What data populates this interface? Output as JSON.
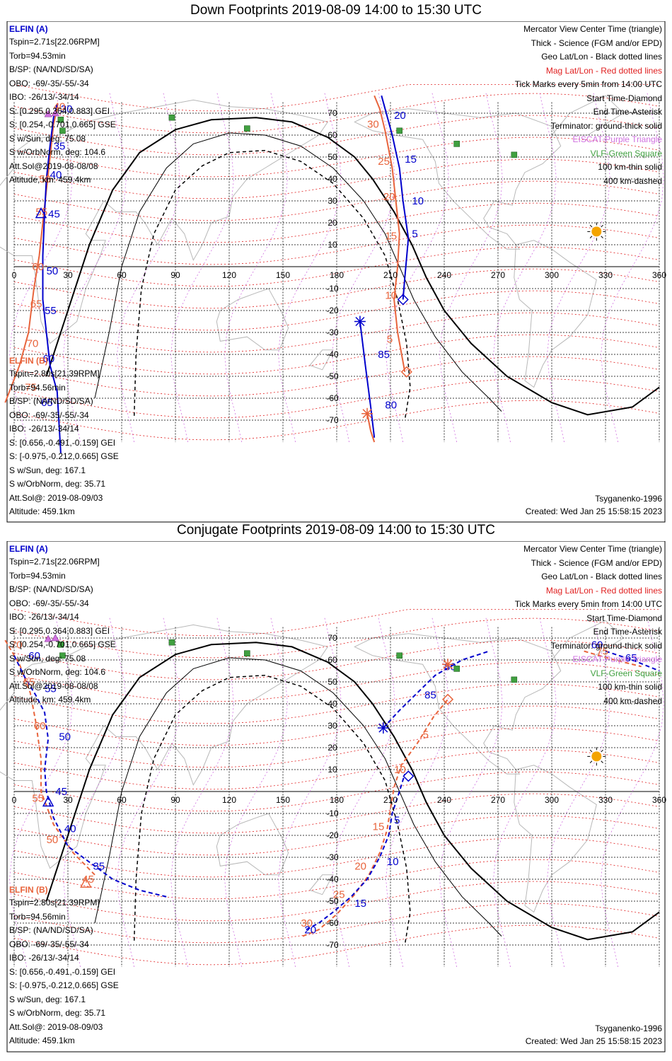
{
  "colors": {
    "elfin_a": "#0000cc",
    "elfin_b": "#e8643c",
    "geo_grid": "#000000",
    "mag_grid": "#e02020",
    "eiscat": "#d070e0",
    "vlf": "#40a040",
    "sun": "#f4a400"
  },
  "panels": [
    {
      "title": "Down Footprints 2019-08-09 14:00 to 15:30 UTC",
      "elfin_a": {
        "name": "ELFIN (A)",
        "lines": [
          "Tspin=2.71s[22.06RPM]",
          "Torb=94.53min",
          "B/SP: (NA/ND/SD/SA)",
          "OBO: -69/-35/-55/-34",
          "IBO: -26/13/-34/14",
          "S: [0.295,0.364,0.883] GEI",
          "S: [0.254,-0.701,0.665] GSE",
          "S w/Sun, deg: 75.08",
          "S w/OrbNorm, deg: 104.6",
          "Att.Sol@2019-08-08/08",
          "Altitude, km: 459.4km"
        ]
      },
      "elfin_b": {
        "name": "ELFIN (B)",
        "lines": [
          "Tspin=2.80s[21.39RPM]",
          "Torb=94.56min",
          "B/SP: (NA/ND/SD/SA)",
          "OBO: -69/-35/-55/-34",
          "IBO: -26/13/-34/14",
          "S: [0.656,-0.491,-0.159] GEI",
          "S: [-0.975,-0.212,0.665] GSE",
          "S w/Sun, deg: 167.1",
          "S w/OrbNorm, deg: 35.71",
          "Att.Sol@: 2019-08-09/03",
          "Altitude: 459.1km"
        ]
      },
      "legend": [
        {
          "text": "Mercator View Center Time (triangle)",
          "color": "black"
        },
        {
          "text": "Thick - Science (FGM and/or EPD)",
          "color": "black"
        },
        {
          "text": "Geo Lat/Lon - Black dotted lines",
          "color": "black"
        },
        {
          "text": "Mag Lat/Lon - Red dotted lines",
          "color": "red"
        },
        {
          "text": "Tick Marks every 5min from 14:00 UTC",
          "color": "black"
        },
        {
          "text": "Start Time-Diamond",
          "color": "black"
        },
        {
          "text": "End Time-Asterisk",
          "color": "black"
        },
        {
          "text": "Terminator: ground-thick solid",
          "color": "black"
        },
        {
          "text": "EISCAT-Purple Triangle",
          "color": "violet"
        },
        {
          "text": "VLF-Green Square",
          "color": "green"
        },
        {
          "text": "100 km-thin solid",
          "color": "black"
        },
        {
          "text": "400 km-dashed",
          "color": "black"
        }
      ],
      "model": "Tsyganenko-1996",
      "created": "Created: Wed Jan 25 15:58:15 2023"
    },
    {
      "title": "Conjugate Footprints 2019-08-09 14:00 to 15:30 UTC",
      "elfin_a": {
        "name": "ELFIN (A)",
        "lines": [
          "Tspin=2.71s[22.06RPM]",
          "Torb=94.53min",
          "B/SP: (NA/ND/SD/SA)",
          "OBO: -69/-35/-55/-34",
          "IBO: -26/13/-34/14",
          "S: [0.295,0.364,0.883] GEI",
          "S: [0.254,-0.701,0.665] GSE",
          "S w/Sun, deg: 75.08",
          "S w/OrbNorm, deg: 104.6",
          "Att.Sol@2019-08-08/08",
          "Altitude, km: 459.4km"
        ]
      },
      "elfin_b": {
        "name": "ELFIN (B)",
        "lines": [
          "Tspin=2.80s[21.39RPM]",
          "Torb=94.56min",
          "B/SP: (NA/ND/SD/SA)",
          "OBO: -69/-35/-55/-34",
          "IBO: -26/13/-34/14",
          "S: [0.656,-0.491,-0.159] GEI",
          "S: [-0.975,-0.212,0.665] GSE",
          "S w/Sun, deg: 167.1",
          "S w/OrbNorm, deg: 35.71",
          "Att.Sol@: 2019-08-09/03",
          "Altitude: 459.1km"
        ]
      },
      "legend": [
        {
          "text": "Mercator View Center Time (triangle)",
          "color": "black"
        },
        {
          "text": "Thick - Science (FGM and/or EPD)",
          "color": "black"
        },
        {
          "text": "Geo Lat/Lon - Black dotted lines",
          "color": "black"
        },
        {
          "text": "Mag Lat/Lon - Red dotted lines",
          "color": "red"
        },
        {
          "text": "Tick Marks every 5min from 14:00 UTC",
          "color": "black"
        },
        {
          "text": "Start Time-Diamond",
          "color": "black"
        },
        {
          "text": "End Time-Asterisk",
          "color": "black"
        },
        {
          "text": "Terminator: ground-thick solid",
          "color": "black"
        },
        {
          "text": "EISCAT-Purple Triangle",
          "color": "violet"
        },
        {
          "text": "VLF-Green Square",
          "color": "green"
        },
        {
          "text": "100 km-thin solid",
          "color": "black"
        },
        {
          "text": "400 km-dashed",
          "color": "black"
        }
      ],
      "model": "Tsyganenko-1996",
      "created": "Created: Wed Jan 25 15:58:15 2023"
    }
  ],
  "lon_ticks": [
    "0",
    "30",
    "60",
    "90",
    "120",
    "150",
    "180",
    "210",
    "240",
    "270",
    "300",
    "330",
    "360"
  ],
  "lat_ticks": [
    {
      "label": "70",
      "lat": 70
    },
    {
      "label": "60",
      "lat": 60
    },
    {
      "label": "50",
      "lat": 50
    },
    {
      "label": "40",
      "lat": 40
    },
    {
      "label": "30",
      "lat": 30
    },
    {
      "label": "20",
      "lat": 20
    },
    {
      "label": "10",
      "lat": 10
    },
    {
      "label": "-10",
      "lat": -10
    },
    {
      "label": "-20",
      "lat": -20
    },
    {
      "label": "-30",
      "lat": -30
    },
    {
      "label": "-40",
      "lat": -40
    },
    {
      "label": "-50",
      "lat": -50
    },
    {
      "label": "-60",
      "lat": -60
    },
    {
      "label": "-70",
      "lat": -70
    }
  ],
  "vlf_sites": [
    {
      "lon": 88,
      "lat": 68
    },
    {
      "lon": 26,
      "lat": 67
    },
    {
      "lon": 27,
      "lat": 62
    },
    {
      "lon": 130,
      "lat": 63
    },
    {
      "lon": 215,
      "lat": 62
    },
    {
      "lon": 247,
      "lat": 56
    },
    {
      "lon": 279,
      "lat": 51
    }
  ],
  "eiscat_sites": [
    {
      "lon": 19,
      "lat": 69.6
    },
    {
      "lon": 23,
      "lat": 70
    }
  ],
  "sun": {
    "lon": 325,
    "lat": 16
  },
  "terminator_ground": [
    [
      18,
      -50
    ],
    [
      30,
      -20
    ],
    [
      42,
      10
    ],
    [
      55,
      35
    ],
    [
      70,
      52
    ],
    [
      90,
      62.5
    ],
    [
      110,
      67
    ],
    [
      135,
      68
    ],
    [
      155,
      66
    ],
    [
      175,
      59
    ],
    [
      190,
      50
    ],
    [
      200,
      40
    ],
    [
      212,
      25
    ],
    [
      222,
      10
    ],
    [
      230,
      -5
    ],
    [
      240,
      -20
    ],
    [
      255,
      -35
    ],
    [
      275,
      -50
    ],
    [
      300,
      -62
    ],
    [
      320,
      -67.5
    ],
    [
      345,
      -64
    ],
    [
      360,
      -55
    ]
  ],
  "terminator_100": [
    [
      45,
      -60
    ],
    [
      53,
      -30
    ],
    [
      60,
      0
    ],
    [
      70,
      25
    ],
    [
      85,
      45
    ],
    [
      100,
      56
    ],
    [
      120,
      61
    ],
    [
      140,
      60
    ],
    [
      160,
      55
    ],
    [
      178,
      45
    ],
    [
      195,
      30
    ],
    [
      207,
      15
    ],
    [
      215,
      0
    ],
    [
      223,
      -15
    ],
    [
      235,
      -32
    ],
    [
      250,
      -48
    ],
    [
      265,
      -60
    ],
    [
      272,
      -66
    ]
  ],
  "terminator_400": [
    [
      67,
      -68
    ],
    [
      68,
      -40
    ],
    [
      71,
      -10
    ],
    [
      78,
      15
    ],
    [
      90,
      35
    ],
    [
      105,
      46
    ],
    [
      120,
      52
    ],
    [
      140,
      53
    ],
    [
      160,
      48
    ],
    [
      178,
      38
    ],
    [
      195,
      22
    ],
    [
      207,
      5
    ],
    [
      214,
      -15
    ],
    [
      219,
      -35
    ],
    [
      221,
      -55
    ],
    [
      218,
      -70
    ]
  ],
  "down": {
    "a_track": [
      [
        26,
        -85
      ],
      [
        24,
        -57
      ],
      [
        20,
        -45
      ],
      [
        18,
        -30
      ],
      [
        16,
        -15
      ],
      [
        16,
        5
      ],
      [
        17,
        25
      ],
      [
        18,
        40
      ],
      [
        20,
        55
      ],
      [
        22,
        68
      ],
      [
        24,
        74
      ]
    ],
    "a_ticks": [
      {
        "label": "30",
        "lon": 26,
        "lat": 72
      },
      {
        "label": "35",
        "lon": 22,
        "lat": 55
      },
      {
        "label": "40",
        "lon": 20,
        "lat": 42
      },
      {
        "label": "45",
        "lon": 19,
        "lat": 24
      },
      {
        "label": "50",
        "lon": 18,
        "lat": -2
      },
      {
        "label": "55",
        "lon": 17,
        "lat": -20
      },
      {
        "label": "60",
        "lon": 16,
        "lat": -42
      },
      {
        "label": "65",
        "lon": 15,
        "lat": -62
      }
    ],
    "a_triangle": {
      "lon": 15,
      "lat": 24
    },
    "b_track": [
      [
        -5,
        -62
      ],
      [
        3,
        -45
      ],
      [
        8,
        -30
      ],
      [
        11,
        -10
      ],
      [
        14,
        5
      ],
      [
        16,
        20
      ],
      [
        18,
        35
      ],
      [
        20,
        50
      ],
      [
        22,
        65
      ],
      [
        24,
        72
      ]
    ],
    "b_ticks": [
      {
        "label": "40",
        "lon": 22,
        "lat": 73
      },
      {
        "label": "50",
        "lon": 14,
        "lat": 40
      },
      {
        "label": "55",
        "lon": 12,
        "lat": 25
      },
      {
        "label": "60",
        "lon": 10,
        "lat": 0
      },
      {
        "label": "65",
        "lon": 9,
        "lat": -17
      },
      {
        "label": "70",
        "lon": 7,
        "lat": -35
      },
      {
        "label": "75",
        "lon": 6,
        "lat": -55
      }
    ],
    "a2_track": [
      [
        205,
        78
      ],
      [
        207,
        72
      ],
      [
        211,
        60
      ],
      [
        215,
        45
      ],
      [
        217,
        30
      ],
      [
        220,
        13
      ],
      [
        218,
        -5
      ],
      [
        217,
        -15
      ]
    ],
    "a2_ticks": [
      {
        "label": "20",
        "lon": 212,
        "lat": 69
      },
      {
        "label": "15",
        "lon": 218,
        "lat": 49
      },
      {
        "label": "10",
        "lon": 222,
        "lat": 30
      },
      {
        "label": "5",
        "lon": 222,
        "lat": 15
      }
    ],
    "a2_start": {
      "lon": 217,
      "lat": -15
    },
    "a2_end": {
      "lon": 193,
      "lat": -25
    },
    "a2_tail": [
      [
        193,
        -25
      ],
      [
        196,
        -45
      ],
      [
        199,
        -64
      ],
      [
        201,
        -78
      ]
    ],
    "a2_tail_ticks": [
      {
        "label": "85",
        "lon": 203,
        "lat": -40
      },
      {
        "label": "80",
        "lon": 207,
        "lat": -63
      }
    ],
    "b2_track": [
      [
        201,
        78
      ],
      [
        204,
        72
      ],
      [
        207,
        62
      ],
      [
        211,
        45
      ],
      [
        213,
        30
      ],
      [
        215,
        15
      ],
      [
        214,
        0
      ],
      [
        212,
        -15
      ],
      [
        214,
        -30
      ],
      [
        218,
        -48
      ]
    ],
    "b2_ticks": [
      {
        "label": "30",
        "lon": 197,
        "lat": 65
      },
      {
        "label": "25",
        "lon": 203,
        "lat": 48
      },
      {
        "label": "20",
        "lon": 206,
        "lat": 32
      },
      {
        "label": "15",
        "lon": 207,
        "lat": 14
      },
      {
        "label": "10",
        "lon": 207,
        "lat": -13
      },
      {
        "label": "5",
        "lon": 208,
        "lat": -33
      }
    ],
    "b2_start": {
      "lon": 219,
      "lat": -48
    },
    "b2_end": {
      "lon": 197,
      "lat": -67
    },
    "b2_tail": [
      [
        197,
        -67
      ],
      [
        199,
        -75
      ],
      [
        201,
        -80
      ]
    ]
  },
  "conj": {
    "a_track": [
      [
        0,
        62
      ],
      [
        6,
        52
      ],
      [
        12,
        44
      ],
      [
        17,
        36
      ],
      [
        19,
        24
      ],
      [
        17,
        10
      ],
      [
        18,
        0
      ],
      [
        22,
        -12
      ],
      [
        30,
        -25
      ],
      [
        45,
        -34
      ],
      [
        55,
        -40
      ],
      [
        70,
        -45
      ],
      [
        85,
        -48
      ]
    ],
    "a_ticks": [
      {
        "label": "60",
        "lon": 8,
        "lat": 62
      },
      {
        "label": "55",
        "lon": 17,
        "lat": 47
      },
      {
        "label": "50",
        "lon": 25,
        "lat": 25
      },
      {
        "label": "45",
        "lon": 23,
        "lat": 0
      },
      {
        "label": "40",
        "lon": 28,
        "lat": -17
      },
      {
        "label": "35",
        "lon": 44,
        "lat": -34
      }
    ],
    "a_triangle": {
      "lon": 19,
      "lat": -5
    },
    "b_track": [
      [
        -5,
        69
      ],
      [
        3,
        58
      ],
      [
        9,
        45
      ],
      [
        12,
        32
      ],
      [
        15,
        15
      ],
      [
        15,
        0
      ],
      [
        22,
        -15
      ],
      [
        33,
        -28
      ],
      [
        45,
        -38
      ]
    ],
    "b_ticks": [
      {
        "label": "70",
        "lon": -2,
        "lat": 67
      },
      {
        "label": "65",
        "lon": 5,
        "lat": 50
      },
      {
        "label": "60",
        "lon": 11,
        "lat": 30
      },
      {
        "label": "55",
        "lon": 10,
        "lat": -3
      },
      {
        "label": "50",
        "lon": 18,
        "lat": -22
      },
      {
        "label": "45",
        "lon": 38,
        "lat": -40
      }
    ],
    "b_triangle": {
      "lon": 40,
      "lat": -42
    },
    "a2_track": [
      [
        163,
        -63
      ],
      [
        170,
        -60
      ],
      [
        178,
        -55
      ],
      [
        188,
        -48
      ],
      [
        197,
        -40
      ],
      [
        204,
        -30
      ],
      [
        209,
        -20
      ],
      [
        211,
        -10
      ],
      [
        215,
        0
      ],
      [
        218,
        8
      ]
    ],
    "a2_ticks": [
      {
        "label": "20",
        "lon": 162,
        "lat": -63
      },
      {
        "label": "15",
        "lon": 190,
        "lat": -51
      },
      {
        "label": "10",
        "lon": 208,
        "lat": -32
      },
      {
        "label": "5",
        "lon": 212,
        "lat": -13
      }
    ],
    "a2_start": {
      "lon": 220,
      "lat": 7
    },
    "a2_end": {
      "lon": 206,
      "lat": 29
    },
    "a2_tail": [
      [
        206,
        29
      ],
      [
        215,
        37
      ],
      [
        225,
        45
      ],
      [
        235,
        53
      ],
      [
        250,
        60
      ],
      [
        265,
        64
      ]
    ],
    "a2_tail_ticks": [
      {
        "label": "85",
        "lon": 229,
        "lat": 44
      },
      {
        "label": "80",
        "lon": 240,
        "lat": 57
      },
      {
        "label": "65",
        "lon": 341,
        "lat": 61
      },
      {
        "label": "60",
        "lon": 322,
        "lat": 67
      }
    ],
    "a3_track": [
      [
        330,
        64
      ],
      [
        345,
        60
      ],
      [
        360,
        55
      ]
    ],
    "b2_track": [
      [
        161,
        -66
      ],
      [
        170,
        -63
      ],
      [
        180,
        -56
      ],
      [
        190,
        -47
      ],
      [
        198,
        -38
      ],
      [
        204,
        -28
      ],
      [
        208,
        -18
      ],
      [
        210,
        -8
      ],
      [
        212,
        2
      ],
      [
        216,
        12
      ],
      [
        225,
        22
      ],
      [
        234,
        34
      ],
      [
        242,
        42
      ]
    ],
    "b2_ticks": [
      {
        "label": "30",
        "lon": 160,
        "lat": -60
      },
      {
        "label": "25",
        "lon": 178,
        "lat": -47
      },
      {
        "label": "20",
        "lon": 190,
        "lat": -34
      },
      {
        "label": "15",
        "lon": 200,
        "lat": -16
      },
      {
        "label": "10",
        "lon": 212,
        "lat": 10
      },
      {
        "label": "5",
        "lon": 228,
        "lat": 26
      }
    ],
    "b2_start": {
      "lon": 242,
      "lat": 42
    },
    "b2_end": {
      "lon": 242,
      "lat": 58
    },
    "b3_track": [
      [
        318,
        64
      ],
      [
        335,
        60
      ],
      [
        350,
        57
      ]
    ],
    "b3_ticks": [
      {
        "label": "75",
        "lon": 325,
        "lat": 64
      }
    ]
  }
}
